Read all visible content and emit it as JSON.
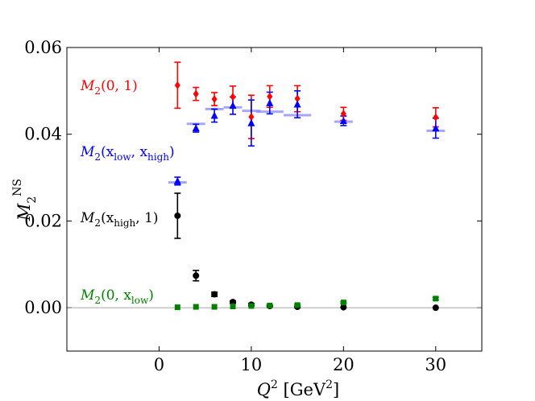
{
  "chart_data": {
    "type": "scatter",
    "title": "",
    "xlabel": "Q² [GeV²]",
    "ylabel": "M₂ⁿˢ",
    "xlim": [
      -10,
      35
    ],
    "ylim": [
      -0.01,
      0.06
    ],
    "xticks": [
      0,
      10,
      20,
      30
    ],
    "xtick_labels": [
      "0",
      "10",
      "20",
      "30"
    ],
    "yticks": [
      0.0,
      0.02,
      0.04,
      0.06
    ],
    "ytick_labels": [
      "0.00",
      "0.02",
      "0.04",
      "0.06"
    ],
    "grid": false,
    "zero_line": true,
    "series": [
      {
        "name": "M2(0,1)",
        "color": "#ff0000",
        "marker": "diamond",
        "label_parts": {
          "base": "M",
          "sub": "2",
          "args": "(0, 1)"
        },
        "points": [
          {
            "x": 2,
            "y": 0.0513,
            "err": 0.0053
          },
          {
            "x": 4,
            "y": 0.0493,
            "err": 0.0015
          },
          {
            "x": 6,
            "y": 0.0481,
            "err": 0.0015
          },
          {
            "x": 8,
            "y": 0.0486,
            "err": 0.0025
          },
          {
            "x": 10,
            "y": 0.044,
            "err": 0.005
          },
          {
            "x": 12,
            "y": 0.0487,
            "err": 0.0025
          },
          {
            "x": 15,
            "y": 0.0482,
            "err": 0.003
          },
          {
            "x": 20,
            "y": 0.0447,
            "err": 0.0015
          },
          {
            "x": 30,
            "y": 0.0439,
            "err": 0.0022
          }
        ]
      },
      {
        "name": "M2(x_low, x_high)",
        "color": "#0000ff",
        "marker": "triangle",
        "label_parts": {
          "base": "M",
          "sub": "2",
          "args_pre": "(x",
          "sub1": "low",
          "mid": ", x",
          "sub2": "high",
          "args_post": ")"
        },
        "points": [
          {
            "x": 2,
            "y": 0.0292,
            "err": 0.0009
          },
          {
            "x": 4,
            "y": 0.0414,
            "err": 0.0009
          },
          {
            "x": 6,
            "y": 0.0443,
            "err": 0.0015
          },
          {
            "x": 8,
            "y": 0.0466,
            "err": 0.002
          },
          {
            "x": 10,
            "y": 0.0426,
            "err": 0.0053
          },
          {
            "x": 12,
            "y": 0.0472,
            "err": 0.0025
          },
          {
            "x": 15,
            "y": 0.0469,
            "err": 0.0031
          },
          {
            "x": 20,
            "y": 0.0431,
            "err": 0.0011
          },
          {
            "x": 30,
            "y": 0.0414,
            "err": 0.0023
          }
        ]
      },
      {
        "name": "M2(x_high, 1)",
        "color": "#000000",
        "marker": "circle",
        "label_parts": {
          "base": "M",
          "sub": "2",
          "args_pre": "(x",
          "sub1": "high",
          "args_post": ", 1)"
        },
        "points": [
          {
            "x": 2,
            "y": 0.0212,
            "err": 0.0052
          },
          {
            "x": 4,
            "y": 0.0074,
            "err": 0.0012
          },
          {
            "x": 6,
            "y": 0.0031,
            "err": 0.0005
          },
          {
            "x": 8,
            "y": 0.0013,
            "err": 0.0003
          },
          {
            "x": 10,
            "y": 0.0007,
            "err": 0.0003
          },
          {
            "x": 12,
            "y": 0.0004,
            "err": 0.0002
          },
          {
            "x": 15,
            "y": 0.0002,
            "err": 0.0002
          },
          {
            "x": 20,
            "y": 0.0001,
            "err": 0.0001
          },
          {
            "x": 30,
            "y": 0.0,
            "err": 0.0001
          }
        ]
      },
      {
        "name": "M2(0, x_low)",
        "color": "#008000",
        "marker": "square",
        "label_parts": {
          "base": "M",
          "sub": "2",
          "args_pre": "(0, x",
          "sub1": "low",
          "args_post": ")"
        },
        "points": [
          {
            "x": 2,
            "y": 0.0001,
            "err": 0.0001
          },
          {
            "x": 4,
            "y": 0.0002,
            "err": 0.0001
          },
          {
            "x": 6,
            "y": 0.0002,
            "err": 0.0001
          },
          {
            "x": 8,
            "y": 0.0003,
            "err": 0.0001
          },
          {
            "x": 10,
            "y": 0.0004,
            "err": 0.0001
          },
          {
            "x": 12,
            "y": 0.0005,
            "err": 0.0001
          },
          {
            "x": 15,
            "y": 0.0006,
            "err": 0.0002
          },
          {
            "x": 20,
            "y": 0.0012,
            "err": 0.0002
          },
          {
            "x": 30,
            "y": 0.0021,
            "err": 0.0003
          }
        ]
      }
    ],
    "bands": {
      "color": "#8888ff",
      "items": [
        {
          "x": 2,
          "y": 0.0289,
          "dx": 1.0
        },
        {
          "x": 4,
          "y": 0.0424,
          "dx": 1.0
        },
        {
          "x": 6,
          "y": 0.0458,
          "dx": 1.0
        },
        {
          "x": 8,
          "y": 0.0462,
          "dx": 1.0
        },
        {
          "x": 10,
          "y": 0.0454,
          "dx": 1.0
        },
        {
          "x": 12,
          "y": 0.0452,
          "dx": 1.5
        },
        {
          "x": 15,
          "y": 0.0444,
          "dx": 1.5
        },
        {
          "x": 20,
          "y": 0.0429,
          "dx": 1.0
        },
        {
          "x": 30,
          "y": 0.0408,
          "dx": 1.0
        }
      ]
    },
    "annotations_placement": "left, beside each series"
  }
}
